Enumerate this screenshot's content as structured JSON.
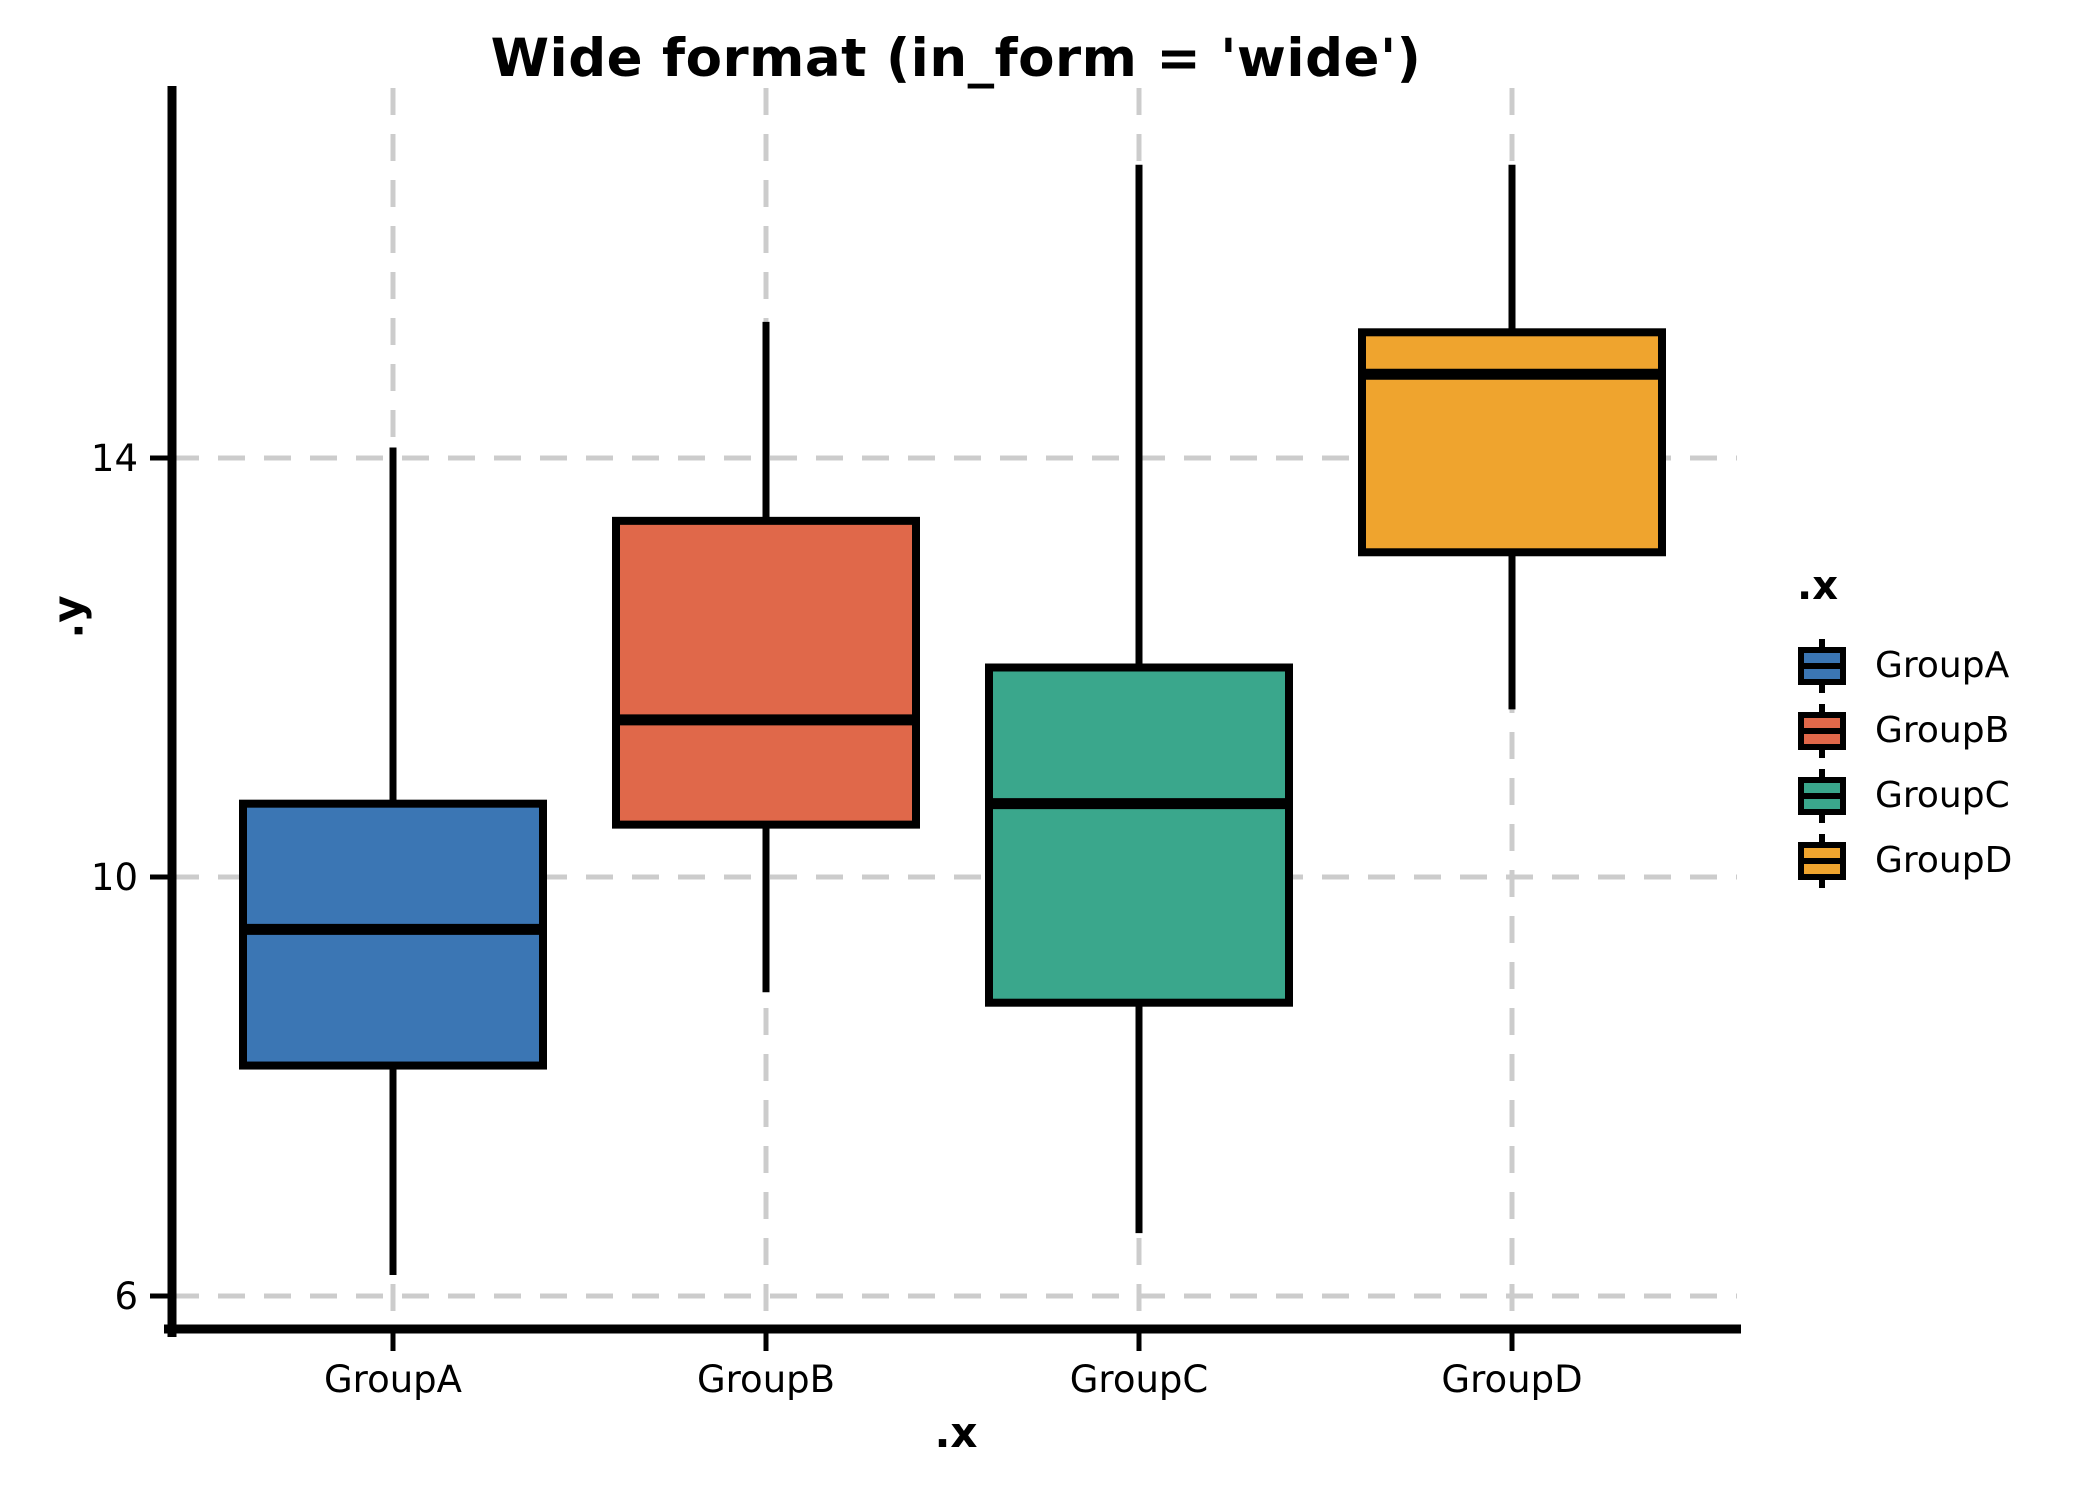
{
  "title": "Wide format (in_form = 'wide')",
  "axes": {
    "x_title": ".x",
    "y_title": ".y",
    "x_tick_labels": [
      "GroupA",
      "GroupB",
      "GroupC",
      "GroupD"
    ],
    "y_tick_labels": [
      "6",
      "10",
      "14"
    ]
  },
  "legend": {
    "title": ".x",
    "items": [
      {
        "label": "GroupA",
        "color": "#3b76b4"
      },
      {
        "label": "GroupB",
        "color": "#e0684a"
      },
      {
        "label": "GroupC",
        "color": "#3aa78c"
      },
      {
        "label": "GroupD",
        "color": "#efa42e"
      }
    ]
  },
  "colors": {
    "grid": "#cccccc",
    "spine": "#000000",
    "box_border": "#000000"
  },
  "chart_data": {
    "type": "boxplot",
    "title": "Wide format (in_form = 'wide')",
    "xlabel": ".x",
    "ylabel": ".y",
    "categories": [
      "GroupA",
      "GroupB",
      "GroupC",
      "GroupD"
    ],
    "y_ticks": [
      6,
      10,
      14
    ],
    "ylim": [
      5.65,
      17.5
    ],
    "grid": "dashed gray gridlines at y ticks and at each category center",
    "legend_position": "right",
    "legend_title": ".x",
    "series": [
      {
        "name": "GroupA",
        "color": "#3b76b4",
        "whisker_low": 6.2,
        "q1": 8.2,
        "median": 9.5,
        "q3": 10.7,
        "whisker_high": 14.1
      },
      {
        "name": "GroupB",
        "color": "#e0684a",
        "whisker_low": 8.9,
        "q1": 10.5,
        "median": 11.5,
        "q3": 13.4,
        "whisker_high": 15.3
      },
      {
        "name": "GroupC",
        "color": "#3aa78c",
        "whisker_low": 6.6,
        "q1": 8.8,
        "median": 10.7,
        "q3": 12.0,
        "whisker_high": 16.8
      },
      {
        "name": "GroupD",
        "color": "#efa42e",
        "whisker_low": 11.6,
        "q1": 13.1,
        "median": 14.8,
        "q3": 15.2,
        "whisker_high": 16.8
      }
    ]
  }
}
